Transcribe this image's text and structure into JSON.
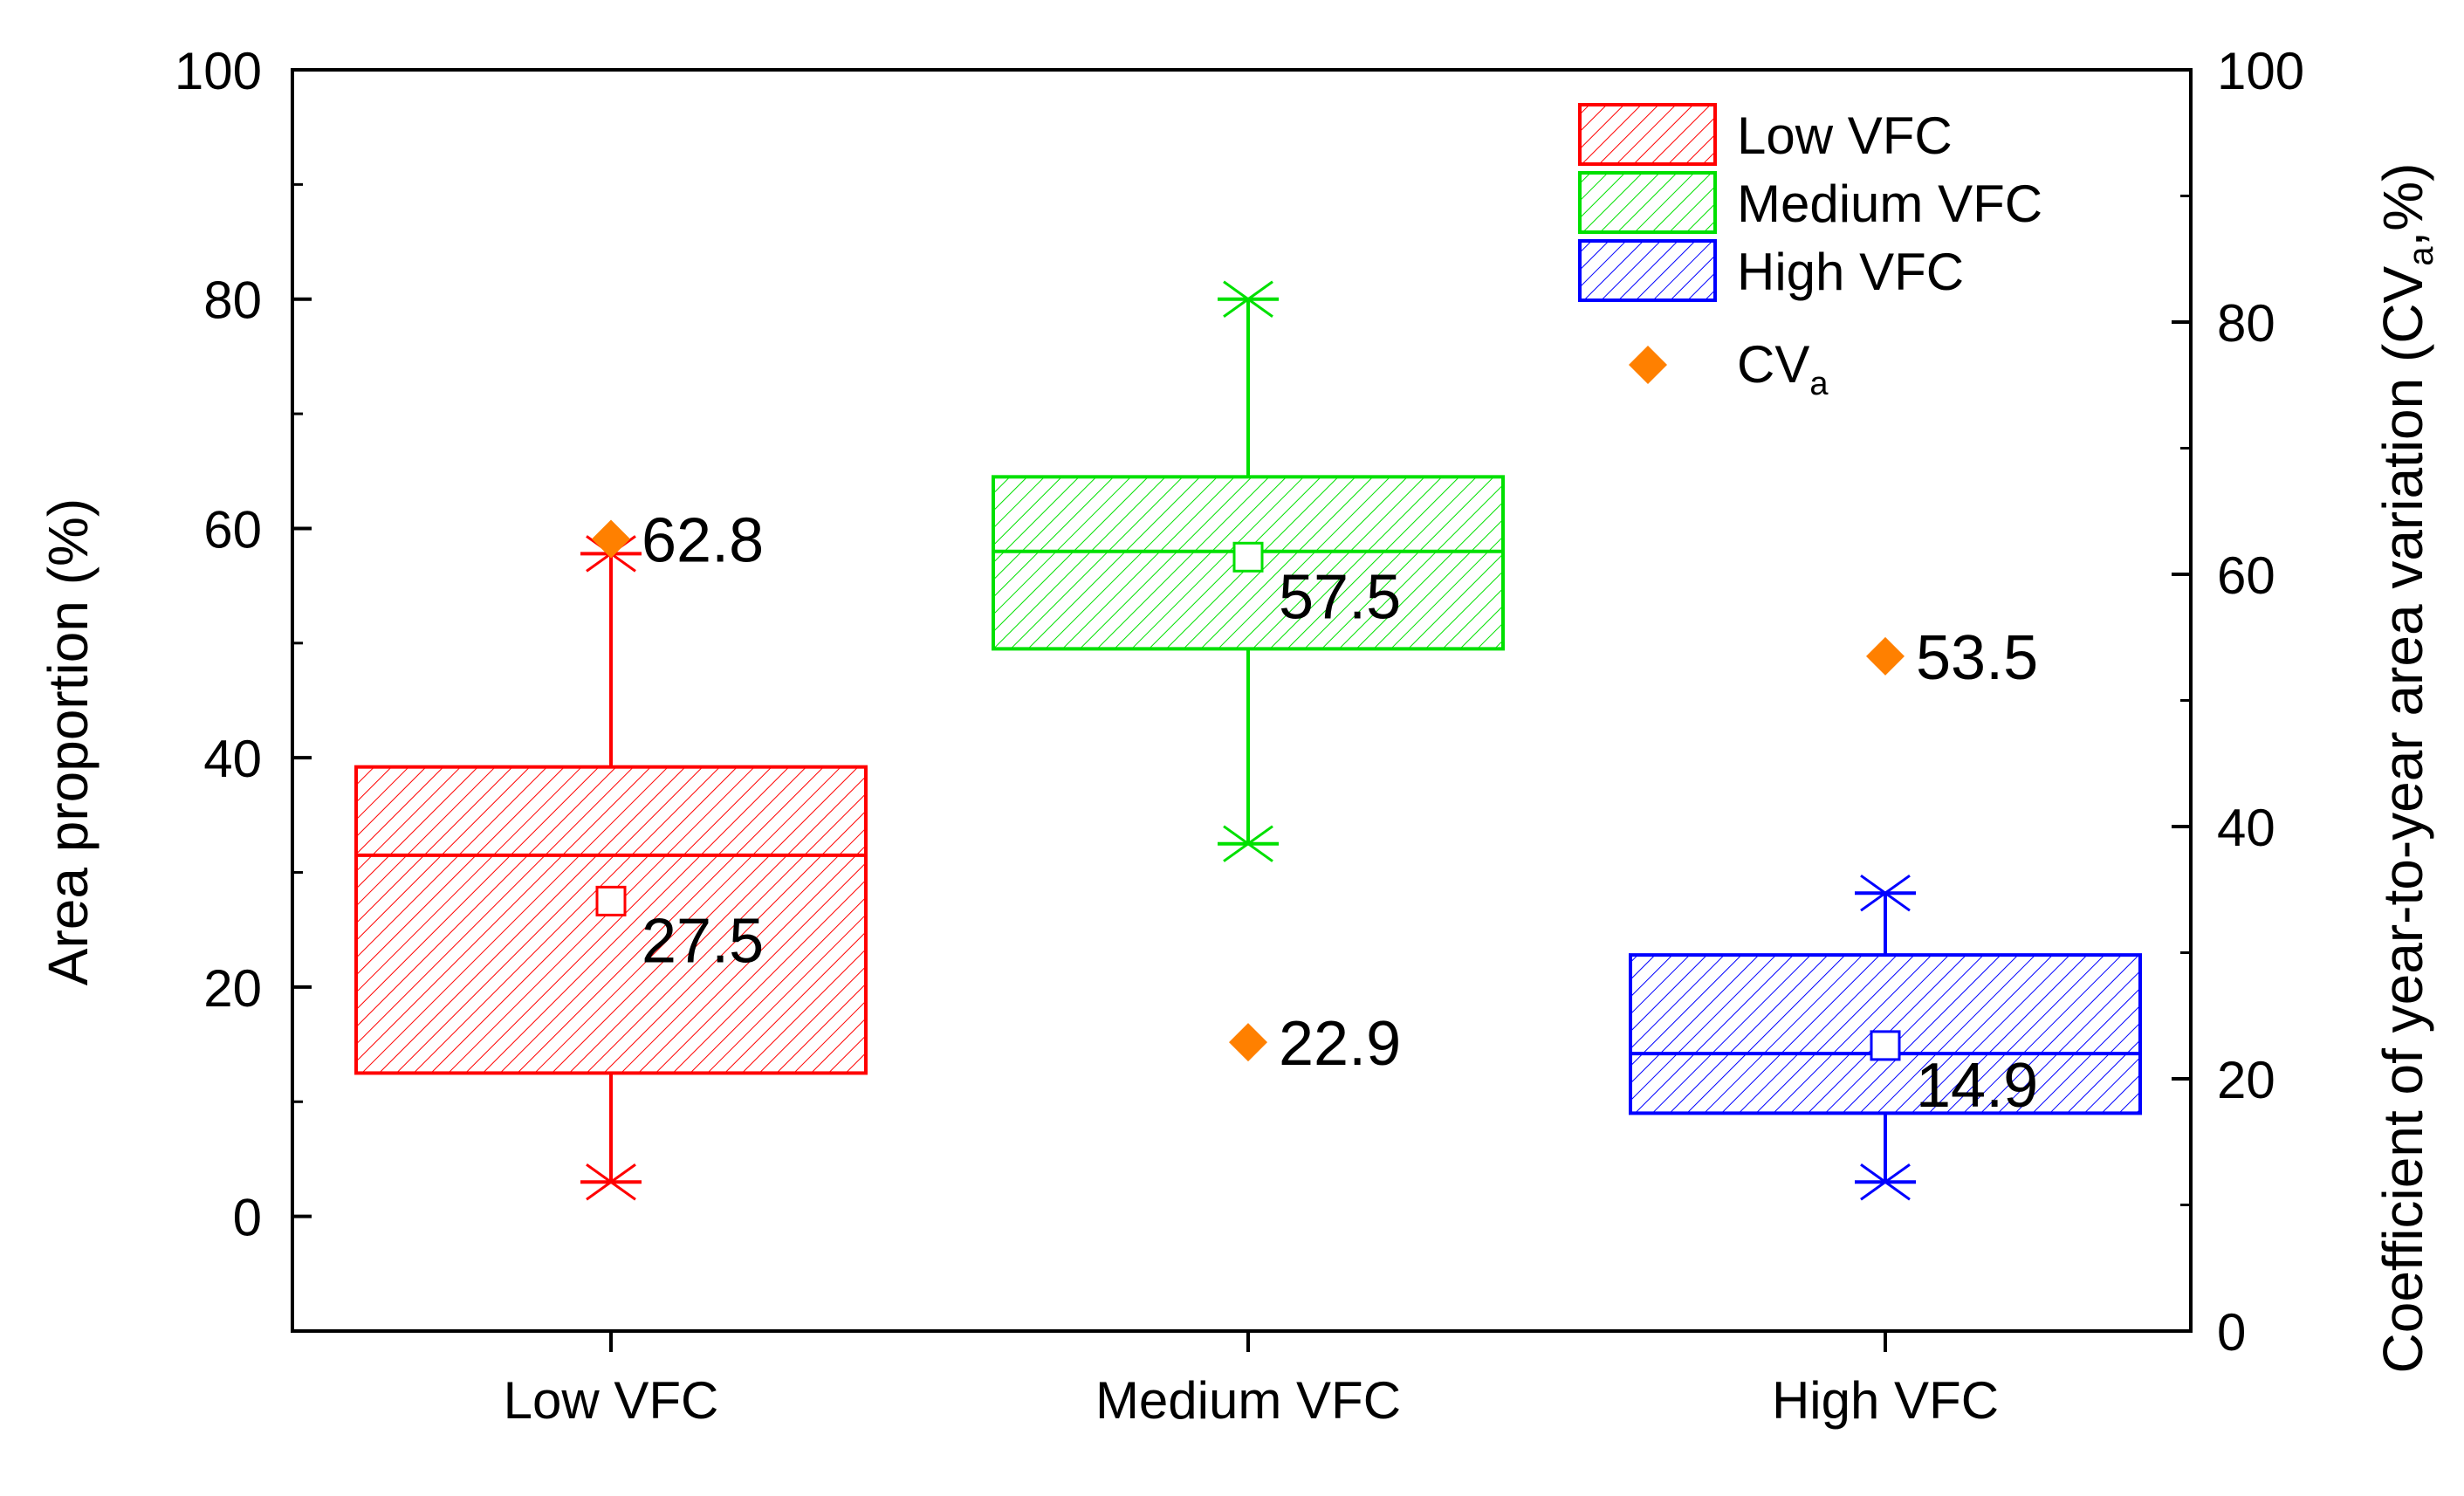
{
  "chart_data": {
    "type": "box",
    "categories": [
      "Low VFC",
      "Medium VFC",
      "High VFC"
    ],
    "ylabel": "Area proportion (%)",
    "y2label": {
      "main": "Coefficient of year-to-year area variation (CV",
      "sub": "a",
      "end": ",%)"
    },
    "ylim": [
      -10,
      100
    ],
    "y2lim": [
      0,
      100
    ],
    "yticks": [
      0,
      20,
      40,
      60,
      80,
      100
    ],
    "y2ticks": [
      0,
      20,
      40,
      60,
      80,
      100
    ],
    "boxes": [
      {
        "name": "Low VFC",
        "color": "#ff0000",
        "whisker_low": 3,
        "q1": 12.5,
        "median": 31.5,
        "q3": 39.2,
        "whisker_high": 57.8,
        "mean": 27.5,
        "mean_label": "27.5"
      },
      {
        "name": "Medium VFC",
        "color": "#00e000",
        "whisker_low": 32.5,
        "q1": 49.5,
        "median": 58.0,
        "q3": 64.5,
        "whisker_high": 80.0,
        "mean": 57.5,
        "mean_label": "57.5"
      },
      {
        "name": "High VFC",
        "color": "#0000ff",
        "whisker_low": 3,
        "q1": 9.0,
        "median": 14.2,
        "q3": 22.8,
        "whisker_high": 28.2,
        "mean": 14.9,
        "mean_label": "14.9"
      }
    ],
    "cv_points": [
      {
        "category": "Low VFC",
        "value": 62.8,
        "label": "62.8"
      },
      {
        "category": "Medium VFC",
        "value": 22.9,
        "label": "22.9"
      },
      {
        "category": "High VFC",
        "value": 53.5,
        "label": "53.5"
      }
    ],
    "cv_color": "#ff8000",
    "legend": {
      "position": "top-right",
      "entries": [
        "Low VFC",
        "Medium VFC",
        "High VFC"
      ],
      "cv_label": "CV",
      "cv_sub": "a"
    }
  }
}
